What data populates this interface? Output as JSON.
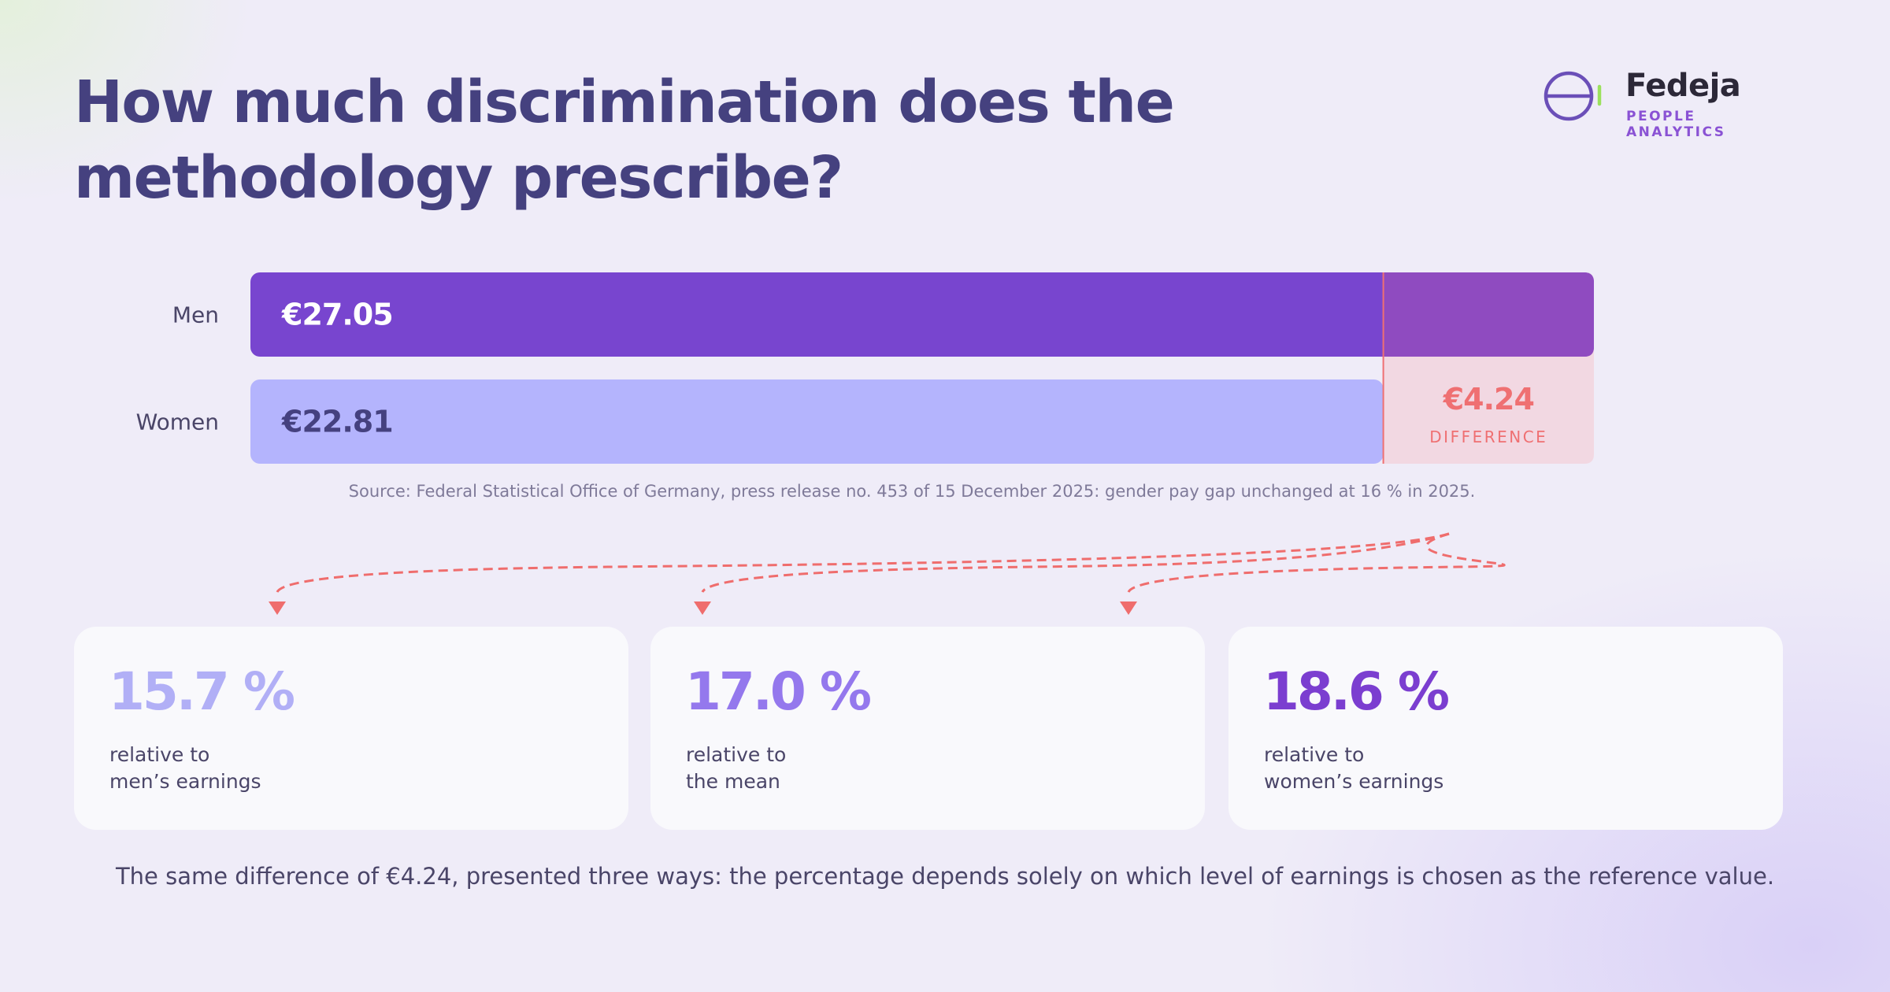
{
  "title": "How much discrimination does the methodology prescribe?",
  "logo": {
    "name": "Fedeja",
    "tagline": "PEOPLE ANALYTICS"
  },
  "chart_data": {
    "type": "bar",
    "orientation": "horizontal",
    "categories": [
      "Men",
      "Women"
    ],
    "values": [
      27.05,
      22.81
    ],
    "value_labels": [
      "€27.05",
      "€22.81"
    ],
    "difference": {
      "value": 4.24,
      "label": "€4.24",
      "caption": "DIFFERENCE"
    },
    "source": "Source: Federal Statistical Office of Germany, press release no. 453 of 15 December 2025: gender pay gap unchanged at 16 % in 2025.",
    "colors": {
      "men": "#7845cf",
      "women": "#b4b4fd",
      "difference_fill": "#f2d8e2",
      "difference_text": "#ef7072",
      "connector": "#ef6d6d"
    }
  },
  "cards": [
    {
      "value": "15.7 %",
      "line1": "relative to",
      "line2": "men’s earnings",
      "color": "#b1aff6"
    },
    {
      "value": "17.0 %",
      "line1": "relative to",
      "line2": "the mean",
      "color": "#9478ed"
    },
    {
      "value": "18.6 %",
      "line1": "relative to",
      "line2": "women’s earnings",
      "color": "#7b3ed0"
    }
  ],
  "footnote": "The same difference of €4.24, presented three ways: the percentage depends solely on which level of earnings is chosen as the reference value."
}
